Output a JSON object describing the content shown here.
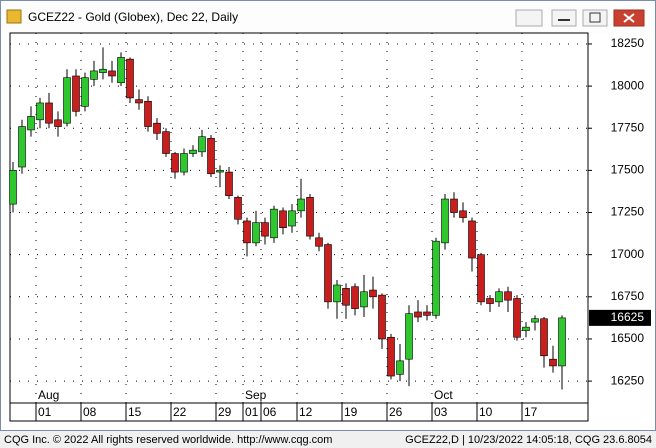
{
  "window": {
    "title": "GCEZ22 - Gold (Globex), Dec 22, Daily"
  },
  "chart_data": {
    "type": "candlestick",
    "categories": [
      null,
      null,
      null,
      "01",
      null,
      null,
      null,
      null,
      "08",
      null,
      null,
      null,
      null,
      "15",
      null,
      null,
      null,
      null,
      "22",
      null,
      null,
      null,
      null,
      "29",
      null,
      null,
      "01",
      null,
      "06",
      null,
      null,
      null,
      "12",
      null,
      null,
      null,
      null,
      "19",
      null,
      null,
      null,
      null,
      "26",
      null,
      null,
      null,
      null,
      "03",
      null,
      null,
      null,
      null,
      "10",
      null,
      null,
      null,
      null,
      "17",
      null,
      null,
      null,
      null
    ],
    "month_categories": [
      null,
      null,
      null,
      "Aug",
      null,
      null,
      null,
      null,
      null,
      null,
      null,
      null,
      null,
      null,
      null,
      null,
      null,
      null,
      null,
      null,
      null,
      null,
      null,
      null,
      null,
      null,
      "Sep",
      null,
      null,
      null,
      null,
      null,
      null,
      null,
      null,
      null,
      null,
      null,
      null,
      null,
      null,
      null,
      null,
      null,
      null,
      null,
      null,
      "Oct",
      null,
      null,
      null,
      null,
      null,
      null,
      null,
      null,
      null,
      null,
      null,
      null,
      null,
      null
    ],
    "open": [
      17300,
      17520,
      17740,
      17800,
      17900,
      17800,
      17780,
      18060,
      17880,
      18040,
      18080,
      18090,
      18020,
      18160,
      17920,
      17910,
      17780,
      17730,
      17600,
      17490,
      17600,
      17610,
      17690,
      17490,
      17490,
      17340,
      17200,
      17070,
      17190,
      17100,
      17260,
      17170,
      17260,
      17340,
      17100,
      17060,
      16720,
      16800,
      16810,
      16690,
      16790,
      16760,
      16510,
      16290,
      16380,
      16660,
      16660,
      16640,
      17070,
      17330,
      17260,
      17200,
      17000,
      16740,
      16720,
      16780,
      16740,
      16550,
      16600,
      16620,
      16380,
      16340
    ],
    "high": [
      17550,
      17800,
      17880,
      17930,
      17960,
      17850,
      18100,
      18100,
      18080,
      18150,
      18230,
      18150,
      18200,
      18170,
      17980,
      17940,
      17810,
      17750,
      17610,
      17630,
      17650,
      17740,
      17710,
      17530,
      17520,
      17350,
      17220,
      17260,
      17220,
      17290,
      17280,
      17300,
      17450,
      17360,
      17130,
      17070,
      16850,
      16830,
      16830,
      16880,
      16870,
      16770,
      16530,
      16470,
      16700,
      16730,
      16700,
      17100,
      17360,
      17370,
      17310,
      17220,
      17010,
      16760,
      16800,
      16810,
      16760,
      16600,
      16640,
      16630,
      16460,
      16640
    ],
    "low": [
      17250,
      17480,
      17700,
      17750,
      17750,
      17700,
      17760,
      17820,
      17850,
      18000,
      18040,
      18020,
      18000,
      17900,
      17860,
      17730,
      17680,
      17580,
      17450,
      17470,
      17580,
      17580,
      17460,
      17400,
      17330,
      17180,
      16990,
      17050,
      17060,
      17070,
      17120,
      17130,
      17220,
      17090,
      17020,
      16680,
      16620,
      16620,
      16640,
      16630,
      16680,
      16440,
      16260,
      16250,
      16220,
      16600,
      16610,
      16620,
      17030,
      17220,
      17190,
      16900,
      16700,
      16660,
      16690,
      16660,
      16490,
      16510,
      16550,
      16330,
      16300,
      16200
    ],
    "close": [
      17500,
      17760,
      17820,
      17900,
      17780,
      17760,
      18050,
      17850,
      18050,
      18090,
      18100,
      18060,
      18170,
      17930,
      17900,
      17760,
      17720,
      17600,
      17490,
      17600,
      17620,
      17700,
      17480,
      17500,
      17350,
      17210,
      17070,
      17190,
      17110,
      17270,
      17160,
      17260,
      17330,
      17110,
      17050,
      16720,
      16820,
      16700,
      16680,
      16780,
      16750,
      16500,
      16280,
      16370,
      16650,
      16630,
      16640,
      17080,
      17330,
      17250,
      17220,
      16980,
      16720,
      16710,
      16780,
      16730,
      16510,
      16570,
      16620,
      16400,
      16340,
      16625
    ],
    "up_color": "#2ec82e",
    "down_color": "#c81e1e",
    "ylim": [
      16120,
      18315
    ],
    "yticks": [
      16250,
      16500,
      16750,
      17000,
      17250,
      17500,
      17750,
      18000,
      18250
    ],
    "grid": true,
    "last_price": 16625
  },
  "status_bar": {
    "left": "CQG Inc. © 2022 All rights reserved worldwide. http://www.cqg.com",
    "right": "GCEZ22,D | 10/23/2022 14:05:18, CQG 23.6.8054"
  }
}
